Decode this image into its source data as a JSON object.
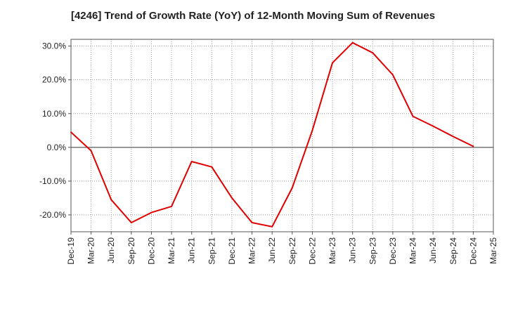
{
  "chart_data": {
    "type": "line",
    "title": "[4246]  Trend of Growth Rate (YoY) of 12-Month Moving Sum of Revenues",
    "xlabel": "",
    "ylabel": "",
    "categories": [
      "Dec-19",
      "Mar-20",
      "Jun-20",
      "Sep-20",
      "Dec-20",
      "Mar-21",
      "Jun-21",
      "Sep-21",
      "Dec-21",
      "Mar-22",
      "Jun-22",
      "Sep-22",
      "Dec-22",
      "Mar-23",
      "Jun-23",
      "Sep-23",
      "Dec-23",
      "Mar-24",
      "Jun-24",
      "Sep-24",
      "Dec-24",
      "Mar-25"
    ],
    "series": [
      {
        "name": "",
        "color": "#e00000",
        "values": [
          4.5,
          -1.0,
          -15.5,
          -22.3,
          -19.3,
          -17.5,
          -4.2,
          -5.8,
          -15.0,
          -22.3,
          -23.5,
          -12.0,
          5.0,
          25.0,
          31.0,
          28.0,
          21.5,
          9.2,
          6.3,
          3.2,
          0.3,
          null
        ]
      }
    ],
    "ylim": [
      -25,
      32
    ],
    "yticks": [
      30,
      20,
      10,
      0,
      -10,
      -20
    ],
    "ytick_labels": [
      "30.0%",
      "20.0%",
      "10.0%",
      "0.0%",
      "-10.0%",
      "-20.0%"
    ],
    "grid": true,
    "grid_style": "dotted",
    "zero_line": true,
    "legend": "none"
  }
}
